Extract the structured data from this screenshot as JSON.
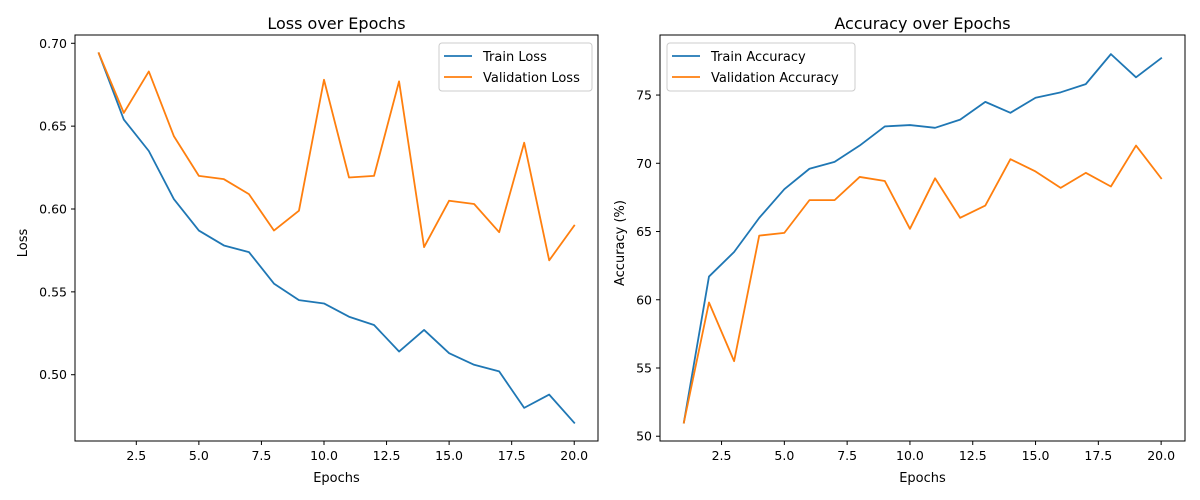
{
  "colors": {
    "blue": "#1f77b4",
    "orange": "#ff7f0e"
  },
  "chart_data": [
    {
      "type": "line",
      "title": "Loss over Epochs",
      "xlabel": "Epochs",
      "ylabel": "Loss",
      "xlim": [
        0.05,
        20.95
      ],
      "ylim": [
        0.46,
        0.705
      ],
      "xticks": [
        2.5,
        5.0,
        7.5,
        10.0,
        12.5,
        15.0,
        17.5,
        20.0
      ],
      "xtick_labels": [
        "2.5",
        "5.0",
        "7.5",
        "10.0",
        "12.5",
        "15.0",
        "17.5",
        "20.0"
      ],
      "yticks": [
        0.5,
        0.55,
        0.6,
        0.65,
        0.7
      ],
      "ytick_labels": [
        "0.50",
        "0.55",
        "0.60",
        "0.65",
        "0.70"
      ],
      "grid": false,
      "legend": "top-right",
      "x": [
        1,
        2,
        3,
        4,
        5,
        6,
        7,
        8,
        9,
        10,
        11,
        12,
        13,
        14,
        15,
        16,
        17,
        18,
        19,
        20
      ],
      "series": [
        {
          "name": "Train Loss",
          "color": "#1f77b4",
          "values": [
            0.694,
            0.654,
            0.635,
            0.606,
            0.587,
            0.578,
            0.574,
            0.555,
            0.545,
            0.543,
            0.535,
            0.53,
            0.514,
            0.527,
            0.513,
            0.506,
            0.502,
            0.48,
            0.488,
            0.471
          ]
        },
        {
          "name": "Validation Loss",
          "color": "#ff7f0e",
          "values": [
            0.694,
            0.658,
            0.683,
            0.644,
            0.62,
            0.618,
            0.609,
            0.587,
            0.599,
            0.678,
            0.619,
            0.62,
            0.677,
            0.577,
            0.605,
            0.603,
            0.586,
            0.64,
            0.569,
            0.59
          ]
        }
      ]
    },
    {
      "type": "line",
      "title": "Accuracy over Epochs",
      "xlabel": "Epochs",
      "ylabel": "Accuracy (%)",
      "xlim": [
        0.05,
        20.95
      ],
      "ylim": [
        49.65,
        79.4
      ],
      "xticks": [
        2.5,
        5.0,
        7.5,
        10.0,
        12.5,
        15.0,
        17.5,
        20.0
      ],
      "xtick_labels": [
        "2.5",
        "5.0",
        "7.5",
        "10.0",
        "12.5",
        "15.0",
        "17.5",
        "20.0"
      ],
      "yticks": [
        50,
        55,
        60,
        65,
        70,
        75
      ],
      "ytick_labels": [
        "50",
        "55",
        "60",
        "65",
        "70",
        "75"
      ],
      "grid": false,
      "legend": "top-left",
      "x": [
        1,
        2,
        3,
        4,
        5,
        6,
        7,
        8,
        9,
        10,
        11,
        12,
        13,
        14,
        15,
        16,
        17,
        18,
        19,
        20
      ],
      "series": [
        {
          "name": "Train Accuracy",
          "color": "#1f77b4",
          "values": [
            51.0,
            61.7,
            63.5,
            66.0,
            68.1,
            69.6,
            70.1,
            71.3,
            72.7,
            72.8,
            72.6,
            73.2,
            74.5,
            73.7,
            74.8,
            75.2,
            75.8,
            78.0,
            76.3,
            77.7
          ]
        },
        {
          "name": "Validation Accuracy",
          "color": "#ff7f0e",
          "values": [
            51.0,
            59.8,
            55.5,
            64.7,
            64.9,
            67.3,
            67.3,
            69.0,
            68.7,
            65.2,
            68.9,
            66.0,
            66.9,
            70.3,
            69.4,
            68.2,
            69.3,
            68.3,
            71.3,
            68.9
          ]
        }
      ]
    }
  ]
}
